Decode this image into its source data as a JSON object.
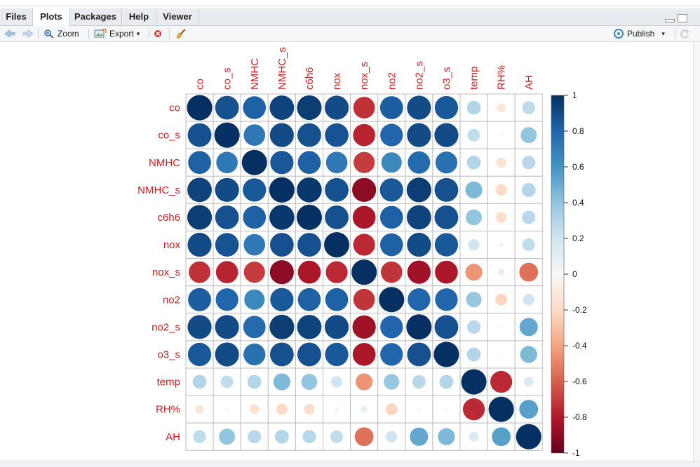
{
  "tabs": [
    {
      "label": "Files"
    },
    {
      "label": "Plots"
    },
    {
      "label": "Packages"
    },
    {
      "label": "Help"
    },
    {
      "label": "Viewer"
    }
  ],
  "toolbar": {
    "zoom_label": "Zoom",
    "export_label": "Export",
    "publish_label": "Publish"
  },
  "colors": {
    "label_red": "#d7191c",
    "grid": "#bebebe"
  },
  "chart_data": {
    "type": "heatmap",
    "variables": [
      "co",
      "co_s",
      "NMHC",
      "NMHC_s",
      "c6h6",
      "nox",
      "nox_s",
      "no2",
      "no2_s",
      "o3_s",
      "temp",
      "RH%",
      "AH"
    ],
    "matrix": [
      [
        1.0,
        0.88,
        0.82,
        0.93,
        0.95,
        0.9,
        -0.73,
        0.83,
        0.9,
        0.85,
        0.3,
        -0.12,
        0.26
      ],
      [
        0.88,
        1.0,
        0.72,
        0.9,
        0.88,
        0.87,
        -0.77,
        0.8,
        0.9,
        0.9,
        0.25,
        0.02,
        0.4
      ],
      [
        0.82,
        0.72,
        1.0,
        0.85,
        0.82,
        0.72,
        -0.7,
        0.65,
        0.78,
        0.75,
        0.3,
        -0.15,
        0.28
      ],
      [
        0.93,
        0.9,
        0.85,
        1.0,
        0.97,
        0.88,
        -0.9,
        0.85,
        0.95,
        0.88,
        0.45,
        -0.2,
        0.3
      ],
      [
        0.95,
        0.88,
        0.82,
        0.97,
        1.0,
        0.88,
        -0.82,
        0.82,
        0.93,
        0.88,
        0.4,
        -0.18,
        0.28
      ],
      [
        0.9,
        0.87,
        0.72,
        0.88,
        0.88,
        1.0,
        -0.75,
        0.82,
        0.9,
        0.85,
        0.2,
        0.03,
        0.25
      ],
      [
        -0.73,
        -0.77,
        -0.7,
        -0.9,
        -0.82,
        -0.75,
        1.0,
        -0.72,
        -0.85,
        -0.82,
        -0.45,
        0.08,
        -0.55
      ],
      [
        0.83,
        0.8,
        0.65,
        0.85,
        0.82,
        0.82,
        -0.72,
        1.0,
        0.8,
        0.8,
        0.38,
        -0.22,
        0.2
      ],
      [
        0.9,
        0.9,
        0.78,
        0.95,
        0.93,
        0.9,
        -0.85,
        0.8,
        1.0,
        0.88,
        0.28,
        0.01,
        0.52
      ],
      [
        0.85,
        0.9,
        0.75,
        0.88,
        0.88,
        0.85,
        -0.82,
        0.8,
        0.88,
        1.0,
        0.3,
        0.01,
        0.45
      ],
      [
        0.3,
        0.25,
        0.3,
        0.45,
        0.4,
        0.2,
        -0.45,
        0.38,
        0.28,
        0.3,
        1.0,
        -0.75,
        0.15
      ],
      [
        -0.12,
        0.02,
        -0.15,
        -0.2,
        -0.18,
        0.03,
        0.08,
        -0.22,
        0.01,
        0.01,
        -0.75,
        1.0,
        0.55
      ],
      [
        0.26,
        0.4,
        0.28,
        0.3,
        0.28,
        0.25,
        -0.55,
        0.2,
        0.52,
        0.45,
        0.15,
        0.55,
        1.0
      ]
    ],
    "colorbar": {
      "range": [
        -1,
        1
      ],
      "tick_labels": [
        "1",
        "0.8",
        "0.6",
        "0.4",
        "0.2",
        "0",
        "-0.2",
        "-0.4",
        "-0.6",
        "-0.8",
        "-1"
      ]
    }
  }
}
